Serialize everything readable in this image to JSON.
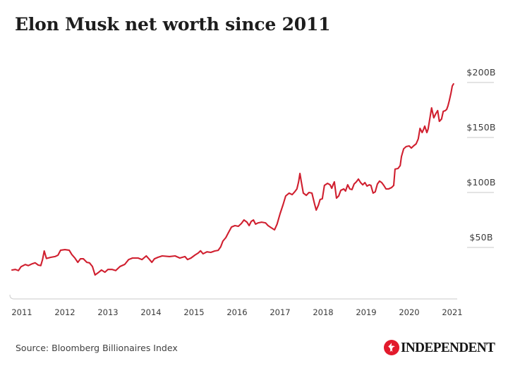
{
  "page": {
    "title": "Elon Musk net worth since 2011"
  },
  "source": {
    "label": "Source: Bloomberg Billionaires Index"
  },
  "branding": {
    "wordmark": "INDEPENDENT",
    "eagle_icon": "independent-eagle-icon",
    "roundel_red": "#e21a2c"
  },
  "colors": {
    "line_red": "#d01f2f",
    "axis_text": "#3d3d3d",
    "grid_gray": "#d4d4d4",
    "title_text": "#1d1d1d"
  },
  "chart_data": {
    "type": "line",
    "title": "Elon Musk net worth since 2011",
    "xlabel": "",
    "ylabel": "",
    "unit": "USD billions",
    "x_ticks": [
      2011,
      2012,
      2013,
      2014,
      2015,
      2016,
      2017,
      2018,
      2019,
      2020,
      2021
    ],
    "y_ticks": [
      {
        "label": "$200B",
        "value": 200
      },
      {
        "label": "$150B",
        "value": 150
      },
      {
        "label": "$100B",
        "value": 100
      },
      {
        "label": "$50B",
        "value": 50
      }
    ],
    "axis": {
      "x_domain": [
        2010.75,
        2021.15
      ],
      "y_domain": [
        0,
        210
      ],
      "grid": "short right-side dashes under y labels, bottom baseline only",
      "legend": "none"
    },
    "series": [
      {
        "name": "Elon Musk net worth ($B)",
        "points": [
          [
            2010.77,
            29.5
          ],
          [
            2010.85,
            30
          ],
          [
            2010.92,
            29
          ],
          [
            2010.98,
            32.5
          ],
          [
            2011.08,
            34.5
          ],
          [
            2011.15,
            33.5
          ],
          [
            2011.23,
            35
          ],
          [
            2011.31,
            36
          ],
          [
            2011.38,
            34
          ],
          [
            2011.44,
            33.5
          ],
          [
            2011.48,
            39
          ],
          [
            2011.52,
            46.8
          ],
          [
            2011.57,
            40
          ],
          [
            2011.67,
            41
          ],
          [
            2011.77,
            41.7
          ],
          [
            2011.84,
            43
          ],
          [
            2011.9,
            47.5
          ],
          [
            2012.0,
            48
          ],
          [
            2012.1,
            47.5
          ],
          [
            2012.16,
            43.5
          ],
          [
            2012.23,
            40.5
          ],
          [
            2012.3,
            36.5
          ],
          [
            2012.36,
            39.7
          ],
          [
            2012.43,
            39.7
          ],
          [
            2012.51,
            36.5
          ],
          [
            2012.57,
            36
          ],
          [
            2012.64,
            32.7
          ],
          [
            2012.7,
            25
          ],
          [
            2012.77,
            27
          ],
          [
            2012.85,
            29.5
          ],
          [
            2012.93,
            27.5
          ],
          [
            2013.0,
            30
          ],
          [
            2013.1,
            30
          ],
          [
            2013.18,
            29
          ],
          [
            2013.28,
            32.7
          ],
          [
            2013.39,
            34.6
          ],
          [
            2013.48,
            39
          ],
          [
            2013.57,
            40.4
          ],
          [
            2013.7,
            40.4
          ],
          [
            2013.79,
            39
          ],
          [
            2013.89,
            42.3
          ],
          [
            2013.95,
            39.7
          ],
          [
            2014.02,
            36.5
          ],
          [
            2014.08,
            39.7
          ],
          [
            2014.16,
            41
          ],
          [
            2014.26,
            42.3
          ],
          [
            2014.43,
            41.7
          ],
          [
            2014.56,
            42.3
          ],
          [
            2014.67,
            40.4
          ],
          [
            2014.79,
            41.7
          ],
          [
            2014.85,
            39
          ],
          [
            2014.93,
            40.4
          ],
          [
            2015.02,
            43
          ],
          [
            2015.1,
            45
          ],
          [
            2015.15,
            47
          ],
          [
            2015.21,
            44.2
          ],
          [
            2015.3,
            46
          ],
          [
            2015.39,
            45.5
          ],
          [
            2015.48,
            46.8
          ],
          [
            2015.56,
            47.4
          ],
          [
            2015.62,
            50.6
          ],
          [
            2015.67,
            55.8
          ],
          [
            2015.74,
            59
          ],
          [
            2015.8,
            63.5
          ],
          [
            2015.87,
            68.6
          ],
          [
            2015.95,
            69.9
          ],
          [
            2016.03,
            69.2
          ],
          [
            2016.1,
            71.8
          ],
          [
            2016.16,
            75
          ],
          [
            2016.23,
            73
          ],
          [
            2016.28,
            69.9
          ],
          [
            2016.33,
            73.7
          ],
          [
            2016.38,
            75
          ],
          [
            2016.43,
            71.2
          ],
          [
            2016.49,
            72.4
          ],
          [
            2016.57,
            73
          ],
          [
            2016.66,
            72.4
          ],
          [
            2016.72,
            69.9
          ],
          [
            2016.79,
            68
          ],
          [
            2016.87,
            66
          ],
          [
            2016.93,
            71.2
          ],
          [
            2017.0,
            80.8
          ],
          [
            2017.07,
            89.1
          ],
          [
            2017.13,
            96.8
          ],
          [
            2017.21,
            99.4
          ],
          [
            2017.28,
            98
          ],
          [
            2017.34,
            100.6
          ],
          [
            2017.39,
            103.2
          ],
          [
            2017.43,
            109.6
          ],
          [
            2017.46,
            117.3
          ],
          [
            2017.49,
            110.3
          ],
          [
            2017.54,
            99.4
          ],
          [
            2017.61,
            97.4
          ],
          [
            2017.67,
            100
          ],
          [
            2017.74,
            99.4
          ],
          [
            2017.8,
            89.7
          ],
          [
            2017.84,
            84
          ],
          [
            2017.89,
            88.5
          ],
          [
            2017.93,
            93.6
          ],
          [
            2017.98,
            94.2
          ],
          [
            2018.03,
            106.4
          ],
          [
            2018.1,
            108.3
          ],
          [
            2018.16,
            107
          ],
          [
            2018.2,
            103.8
          ],
          [
            2018.23,
            107
          ],
          [
            2018.26,
            109.6
          ],
          [
            2018.31,
            94.9
          ],
          [
            2018.36,
            96.8
          ],
          [
            2018.41,
            101.9
          ],
          [
            2018.48,
            103.2
          ],
          [
            2018.52,
            101.3
          ],
          [
            2018.57,
            107
          ],
          [
            2018.62,
            103.2
          ],
          [
            2018.67,
            102.6
          ],
          [
            2018.72,
            107.7
          ],
          [
            2018.77,
            109.6
          ],
          [
            2018.82,
            112.2
          ],
          [
            2018.87,
            109
          ],
          [
            2018.92,
            107
          ],
          [
            2018.97,
            109
          ],
          [
            2019.02,
            105.8
          ],
          [
            2019.07,
            107
          ],
          [
            2019.11,
            106.4
          ],
          [
            2019.16,
            99.4
          ],
          [
            2019.21,
            100.6
          ],
          [
            2019.26,
            107.7
          ],
          [
            2019.31,
            110.3
          ],
          [
            2019.36,
            109
          ],
          [
            2019.41,
            106.4
          ],
          [
            2019.46,
            103.2
          ],
          [
            2019.52,
            103.2
          ],
          [
            2019.59,
            104.5
          ],
          [
            2019.64,
            106.4
          ],
          [
            2019.67,
            121.2
          ],
          [
            2019.74,
            121.8
          ],
          [
            2019.79,
            124.4
          ],
          [
            2019.82,
            132.7
          ],
          [
            2019.87,
            139.7
          ],
          [
            2019.93,
            141.7
          ],
          [
            2020.0,
            142.3
          ],
          [
            2020.05,
            140.4
          ],
          [
            2020.1,
            142.3
          ],
          [
            2020.16,
            144.2
          ],
          [
            2020.21,
            148.7
          ],
          [
            2020.25,
            158.3
          ],
          [
            2020.3,
            154.5
          ],
          [
            2020.33,
            157
          ],
          [
            2020.36,
            160.3
          ],
          [
            2020.41,
            154.5
          ],
          [
            2020.44,
            157.7
          ],
          [
            2020.49,
            169.9
          ],
          [
            2020.52,
            176.9
          ],
          [
            2020.57,
            167.9
          ],
          [
            2020.62,
            171.8
          ],
          [
            2020.66,
            174.4
          ],
          [
            2020.7,
            164.7
          ],
          [
            2020.75,
            166.7
          ],
          [
            2020.79,
            173.7
          ],
          [
            2020.84,
            174.4
          ],
          [
            2020.87,
            175.6
          ],
          [
            2020.9,
            178.8
          ],
          [
            2020.93,
            183.3
          ],
          [
            2020.97,
            190.4
          ],
          [
            2021.0,
            196.8
          ],
          [
            2021.03,
            198.7
          ]
        ]
      }
    ]
  }
}
